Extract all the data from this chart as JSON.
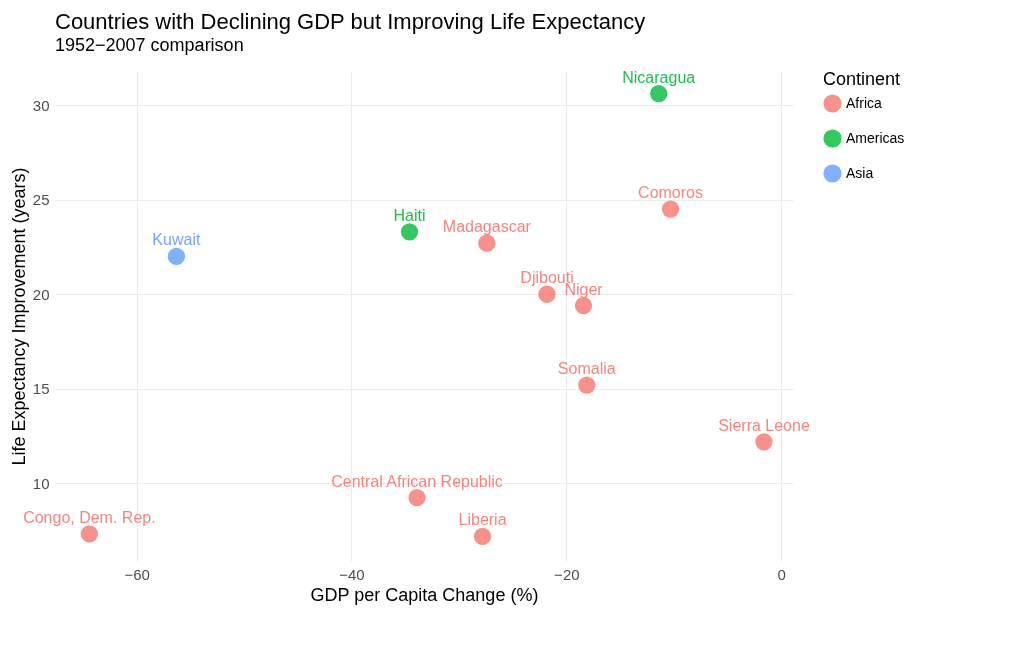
{
  "chart_data": {
    "type": "scatter",
    "title": "Countries with Declining GDP but Improving Life Expectancy",
    "subtitle": "1952−2007 comparison",
    "xlabel": "GDP per Capita Change (%)",
    "ylabel": "Life Expectancy Improvement (years)",
    "legend_title": "Continent",
    "xlim": [
      -67.6,
      1.1
    ],
    "ylim": [
      5.9,
      31.8
    ],
    "xticks": [
      {
        "value": -60,
        "label": "−60"
      },
      {
        "value": -40,
        "label": "−40"
      },
      {
        "value": -20,
        "label": "−20"
      },
      0
    ],
    "yticks": [
      10,
      15,
      20,
      25,
      30
    ],
    "grid": true,
    "legend": "right",
    "marker": "circle",
    "series": [
      {
        "name": "Africa",
        "color": "#f8766d",
        "x": [
          -64.4,
          -27.4,
          -33.9,
          -27.8,
          -21.8,
          -18.4,
          -18.1,
          -10.3,
          -1.6
        ],
        "values": [
          7.33,
          22.7,
          9.25,
          7.2,
          20.0,
          19.4,
          15.2,
          24.5,
          12.2
        ],
        "value_labels": [
          "Congo, Dem. Rep.",
          "Madagascar",
          "Central African Republic",
          "Liberia",
          "Djibouti",
          "Niger",
          "Somalia",
          "Comoros",
          "Sierra Leone"
        ]
      },
      {
        "name": "Americas",
        "color": "#00ba38",
        "x": [
          -34.6,
          -11.4
        ],
        "values": [
          23.3,
          30.6
        ],
        "value_labels": [
          "Haiti",
          "Nicaragua"
        ]
      },
      {
        "name": "Asia",
        "color": "#619cff",
        "x": [
          -56.3
        ],
        "values": [
          22.0
        ],
        "value_labels": [
          "Kuwait"
        ]
      }
    ]
  }
}
